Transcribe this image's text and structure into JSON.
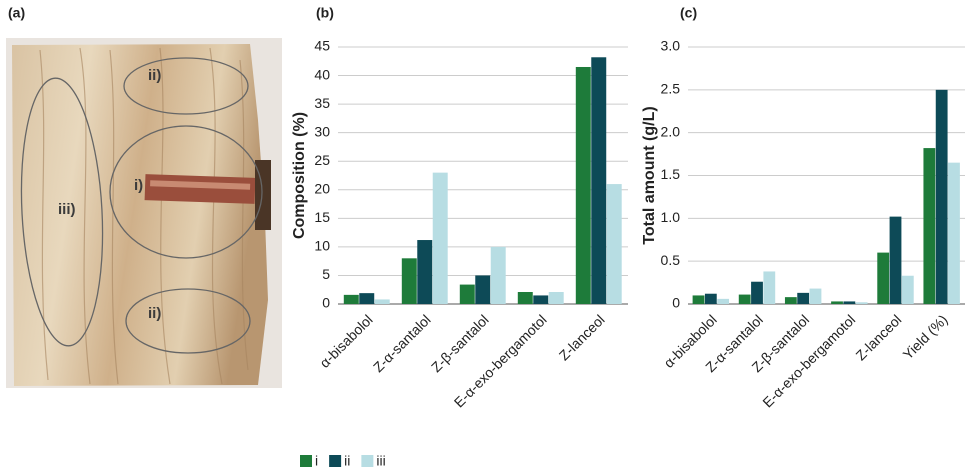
{
  "photo": {
    "panel_label": "(a)",
    "regions": [
      "ii)",
      "i)",
      "iii)",
      "ii)"
    ]
  },
  "chart_data": [
    {
      "type": "bar",
      "panel_label": "(b)",
      "y_label": "Composition (%)",
      "categories": [
        "α-bisabolol",
        "Z-α-santalol",
        "Z-β-santalol",
        "E-α-exo-bergamotol",
        "Z-lanceol"
      ],
      "series": [
        {
          "name": "i",
          "color": "#1e7b3a",
          "values": [
            1.6,
            8,
            3.4,
            2.1,
            41.5
          ]
        },
        {
          "name": "ii",
          "color": "#0d4a57",
          "values": [
            1.9,
            11.2,
            5,
            1.5,
            43.2
          ]
        },
        {
          "name": "iii",
          "color": "#b7dde3",
          "values": [
            0.8,
            23,
            10,
            2.1,
            21
          ]
        }
      ],
      "ylim": [
        0,
        45
      ],
      "yticks": [
        0,
        5,
        10,
        15,
        20,
        25,
        30,
        35,
        40,
        45
      ],
      "grid": true
    },
    {
      "type": "bar",
      "panel_label": "(c)",
      "y_label": "Total amount (g/L)",
      "categories": [
        "α-bisabolol",
        "Z-α-santalol",
        "Z-β-santalol",
        "E-α-exo-bergamotol",
        "Z-lanceol",
        "Yield (%)"
      ],
      "series": [
        {
          "name": "i",
          "color": "#1e7b3a",
          "values": [
            0.1,
            0.11,
            0.08,
            0.03,
            0.6,
            1.82
          ]
        },
        {
          "name": "ii",
          "color": "#0d4a57",
          "values": [
            0.12,
            0.26,
            0.13,
            0.03,
            1.02,
            2.5
          ]
        },
        {
          "name": "iii",
          "color": "#b7dde3",
          "values": [
            0.06,
            0.38,
            0.18,
            0.02,
            0.33,
            1.65
          ]
        }
      ],
      "ylim": [
        0,
        3
      ],
      "yticks": [
        0,
        0.5,
        {
          "value": 1,
          "label": "1.0"
        },
        1.5,
        {
          "value": 2,
          "label": "2.0"
        },
        2.5,
        {
          "value": 3,
          "label": "3.0"
        }
      ],
      "grid": true
    }
  ]
}
